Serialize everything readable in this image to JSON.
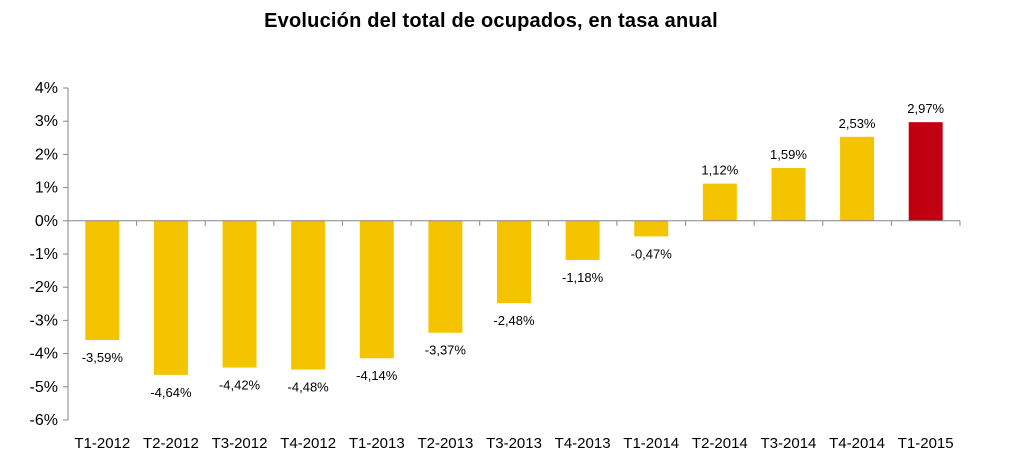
{
  "chart_data": {
    "type": "bar",
    "title": "Evolución del total de ocupados, en tasa anual",
    "xlabel": "",
    "ylabel": "",
    "ylim": [
      -6,
      4
    ],
    "yticks": [
      4,
      3,
      2,
      1,
      0,
      -1,
      -2,
      -3,
      -4,
      -5,
      -6
    ],
    "ytick_labels": [
      "4%",
      "3%",
      "2%",
      "1%",
      "0%",
      "-1%",
      "-2%",
      "-3%",
      "-4%",
      "-5%",
      "-6%"
    ],
    "grid": false,
    "legend": "none",
    "categories": [
      "T1-2012",
      "T2-2012",
      "T3-2012",
      "T4-2012",
      "T1-2013",
      "T2-2013",
      "T3-2013",
      "T4-2013",
      "T1-2014",
      "T2-2014",
      "T3-2014",
      "T4-2014",
      "T1-2015"
    ],
    "values": [
      -3.59,
      -4.64,
      -4.42,
      -4.48,
      -4.14,
      -3.37,
      -2.48,
      -1.18,
      -0.47,
      1.12,
      1.59,
      2.53,
      2.97
    ],
    "data_labels": [
      "-3,59%",
      "-4,64%",
      "-4,42%",
      "-4,48%",
      "-4,14%",
      "-3,37%",
      "-2,48%",
      "-1,18%",
      "-0,47%",
      "1,12%",
      "1,59%",
      "2,53%",
      "2,97%"
    ],
    "colors": {
      "default_bar": "#F5C400",
      "highlight_bar": "#C00010",
      "axis": "#868686"
    },
    "highlight_index": 12
  }
}
